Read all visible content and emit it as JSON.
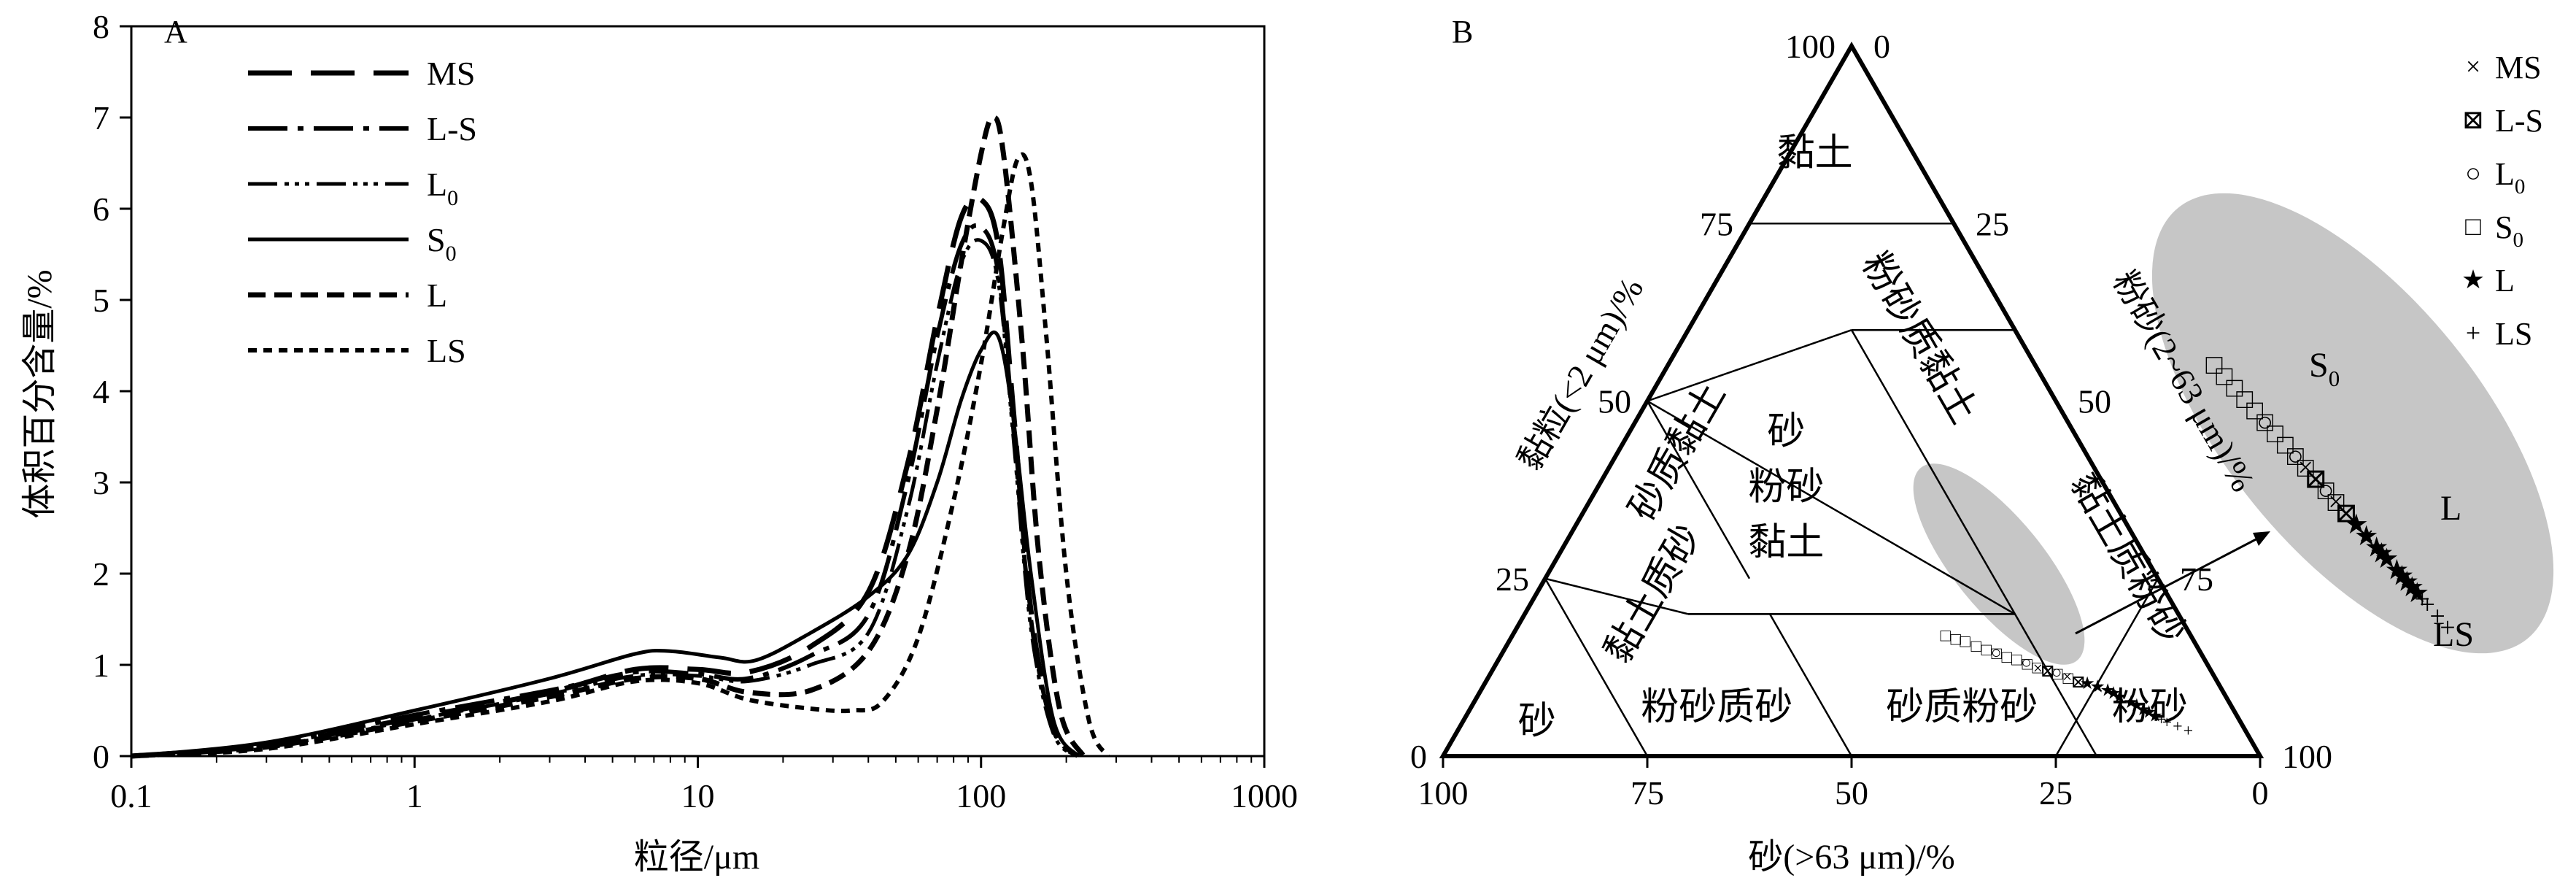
{
  "chart_data": [
    {
      "type": "line",
      "panel_label": "A",
      "xlabel": "粒径/μm",
      "ylabel": "体积百分含量/%",
      "x_scale": "log",
      "xlim": [
        0.1,
        1000
      ],
      "ylim": [
        0,
        8
      ],
      "x_ticks": [
        "0.1",
        "1",
        "10",
        "100",
        "1000"
      ],
      "y_ticks": [
        "0",
        "1",
        "2",
        "3",
        "4",
        "5",
        "6",
        "7",
        "8"
      ],
      "grid": false,
      "legend_position": "top-left",
      "series": [
        {
          "name": "MS",
          "legend_main": "MS",
          "legend_sub": "",
          "dash": "60,26",
          "width": 7,
          "points": [
            [
              0.1,
              0
            ],
            [
              0.3,
              0.12
            ],
            [
              1,
              0.42
            ],
            [
              3,
              0.7
            ],
            [
              6,
              0.95
            ],
            [
              10,
              0.95
            ],
            [
              15,
              0.92
            ],
            [
              25,
              1.2
            ],
            [
              40,
              1.8
            ],
            [
              55,
              3.2
            ],
            [
              70,
              4.8
            ],
            [
              85,
              5.9
            ],
            [
              100,
              6.1
            ],
            [
              115,
              5.6
            ],
            [
              130,
              3.8
            ],
            [
              150,
              1.6
            ],
            [
              180,
              0.3
            ],
            [
              220,
              0
            ]
          ]
        },
        {
          "name": "L-S",
          "legend_main": "L-S",
          "legend_sub": "",
          "dash": "54,14,8,14",
          "width": 6,
          "points": [
            [
              0.1,
              0
            ],
            [
              0.3,
              0.12
            ],
            [
              1,
              0.45
            ],
            [
              3,
              0.72
            ],
            [
              6,
              0.92
            ],
            [
              10,
              0.9
            ],
            [
              15,
              0.85
            ],
            [
              25,
              1.1
            ],
            [
              40,
              1.55
            ],
            [
              55,
              3.0
            ],
            [
              70,
              4.6
            ],
            [
              85,
              5.6
            ],
            [
              100,
              5.8
            ],
            [
              115,
              5.3
            ],
            [
              130,
              3.6
            ],
            [
              150,
              1.5
            ],
            [
              180,
              0.3
            ],
            [
              220,
              0
            ]
          ]
        },
        {
          "name": "L0",
          "legend_main": "L",
          "legend_sub": "0",
          "dash": "40,10,6,8,6,8,6,10",
          "width": 5,
          "points": [
            [
              0.1,
              0
            ],
            [
              0.3,
              0.1
            ],
            [
              1,
              0.4
            ],
            [
              3,
              0.68
            ],
            [
              6,
              0.88
            ],
            [
              10,
              0.88
            ],
            [
              15,
              0.82
            ],
            [
              25,
              1.0
            ],
            [
              40,
              1.35
            ],
            [
              55,
              2.7
            ],
            [
              70,
              4.3
            ],
            [
              85,
              5.4
            ],
            [
              100,
              5.65
            ],
            [
              115,
              5.2
            ],
            [
              130,
              3.5
            ],
            [
              150,
              1.4
            ],
            [
              180,
              0.25
            ],
            [
              220,
              0
            ]
          ]
        },
        {
          "name": "S0",
          "legend_main": "S",
          "legend_sub": "0",
          "dash": "none",
          "width": 5,
          "points": [
            [
              0.1,
              0
            ],
            [
              0.3,
              0.15
            ],
            [
              1,
              0.5
            ],
            [
              3,
              0.85
            ],
            [
              6,
              1.12
            ],
            [
              8,
              1.15
            ],
            [
              12,
              1.08
            ],
            [
              16,
              1.05
            ],
            [
              25,
              1.35
            ],
            [
              40,
              1.75
            ],
            [
              55,
              2.2
            ],
            [
              70,
              3.0
            ],
            [
              85,
              3.9
            ],
            [
              100,
              4.45
            ],
            [
              115,
              4.6
            ],
            [
              130,
              3.7
            ],
            [
              150,
              2.0
            ],
            [
              180,
              0.4
            ],
            [
              220,
              0
            ]
          ]
        },
        {
          "name": "L",
          "legend_main": "L",
          "legend_sub": "",
          "dash": "24,12",
          "width": 7,
          "points": [
            [
              0.1,
              0
            ],
            [
              0.3,
              0.1
            ],
            [
              1,
              0.38
            ],
            [
              3,
              0.65
            ],
            [
              6,
              0.85
            ],
            [
              10,
              0.85
            ],
            [
              15,
              0.7
            ],
            [
              25,
              0.72
            ],
            [
              40,
              1.15
            ],
            [
              55,
              2.2
            ],
            [
              70,
              3.8
            ],
            [
              85,
              5.4
            ],
            [
              100,
              6.6
            ],
            [
              110,
              7.0
            ],
            [
              120,
              6.6
            ],
            [
              140,
              4.5
            ],
            [
              160,
              2.2
            ],
            [
              190,
              0.5
            ],
            [
              230,
              0
            ]
          ]
        },
        {
          "name": "LS",
          "legend_main": "LS",
          "legend_sub": "",
          "dash": "12,9",
          "width": 6,
          "points": [
            [
              0.1,
              0
            ],
            [
              0.3,
              0.08
            ],
            [
              1,
              0.35
            ],
            [
              3,
              0.6
            ],
            [
              6,
              0.82
            ],
            [
              10,
              0.8
            ],
            [
              15,
              0.62
            ],
            [
              25,
              0.52
            ],
            [
              35,
              0.5
            ],
            [
              45,
              0.6
            ],
            [
              60,
              1.3
            ],
            [
              80,
              2.8
            ],
            [
              100,
              4.3
            ],
            [
              120,
              5.8
            ],
            [
              135,
              6.55
            ],
            [
              150,
              6.3
            ],
            [
              170,
              4.6
            ],
            [
              200,
              2.0
            ],
            [
              240,
              0.4
            ],
            [
              280,
              0
            ]
          ]
        }
      ]
    },
    {
      "type": "scatter",
      "subtype": "ternary",
      "panel_label": "B",
      "axis_label_bottom": "砂(>63 μm)/%",
      "axis_label_left": "黏粒(<2 μm)/%",
      "axis_label_right": "粉砂(2~63 μm)/%",
      "bottom_ticks": [
        "100",
        "75",
        "50",
        "25",
        "0"
      ],
      "left_ticks": [
        "0",
        "25",
        "50",
        "75",
        "100"
      ],
      "right_ticks": [
        "0",
        "25",
        "50",
        "75",
        "100"
      ],
      "regions": [
        {
          "name": "clay",
          "label_lines": [
            "黏土"
          ],
          "vertical": false
        },
        {
          "name": "silty-clay",
          "label_lines": [
            "粉砂质黏土"
          ],
          "vertical": true
        },
        {
          "name": "sandy-clay",
          "label_lines": [
            "砂质黏土"
          ],
          "vertical": true
        },
        {
          "name": "sand-silt-clay",
          "label_lines": [
            "砂",
            "粉砂",
            "黏土"
          ],
          "vertical": false
        },
        {
          "name": "clayey-sand",
          "label_lines": [
            "黏土质砂"
          ],
          "vertical": true
        },
        {
          "name": "clayey-silt",
          "label_lines": [
            "黏土质粉砂"
          ],
          "vertical": true
        },
        {
          "name": "sand",
          "label_lines": [
            "砂"
          ],
          "vertical": false
        },
        {
          "name": "silty-sand",
          "label_lines": [
            "粉砂质砂"
          ],
          "vertical": false
        },
        {
          "name": "sandy-silt",
          "label_lines": [
            "砂质粉砂"
          ],
          "vertical": false
        },
        {
          "name": "silt",
          "label_lines": [
            "粉砂"
          ],
          "vertical": false
        }
      ],
      "series": [
        {
          "name": "MS",
          "legend_main": "MS",
          "legend_sub": "",
          "marker": "×"
        },
        {
          "name": "L-S",
          "legend_main": "L-S",
          "legend_sub": "",
          "marker": "⊠"
        },
        {
          "name": "L0",
          "legend_main": "L",
          "legend_sub": "0",
          "marker": "○"
        },
        {
          "name": "S0",
          "legend_main": "S",
          "legend_sub": "0",
          "marker": "□"
        },
        {
          "name": "L",
          "legend_main": "L",
          "legend_sub": "",
          "marker": "★"
        },
        {
          "name": "LS",
          "legend_main": "LS",
          "legend_sub": "",
          "marker": "+"
        }
      ],
      "sample_points": {
        "S0": [
          [
            30,
            17,
            53
          ],
          [
            29,
            16.5,
            54.5
          ],
          [
            28,
            16.2,
            55.8
          ],
          [
            27,
            15.5,
            57.5
          ],
          [
            26,
            15,
            59
          ],
          [
            25,
            14.5,
            60.5
          ],
          [
            24,
            14,
            62
          ],
          [
            23,
            13.6,
            63.4
          ],
          [
            22,
            13,
            65
          ],
          [
            21,
            12.5,
            66.5
          ],
          [
            20,
            12,
            68
          ],
          [
            19,
            11.6,
            69.4
          ],
          [
            18,
            11,
            71
          ]
        ],
        "L0": [
          [
            25,
            14.6,
            60.4
          ],
          [
            22,
            13.2,
            64.8
          ],
          [
            19,
            11.8,
            69.2
          ]
        ],
        "MS": [
          [
            21,
            12.4,
            66.6
          ],
          [
            18,
            11.2,
            70.8
          ],
          [
            15,
            9.6,
            75.4
          ]
        ],
        "L-S": [
          [
            20,
            12,
            68
          ],
          [
            17,
            10.5,
            72.5
          ]
        ],
        "L": [
          [
            16,
            10.3,
            73.7
          ],
          [
            15,
            9.8,
            75.2
          ],
          [
            14,
            9.3,
            76.7
          ],
          [
            13.5,
            8.9,
            77.6
          ],
          [
            13,
            8.4,
            78.6
          ],
          [
            12,
            7.6,
            80.4
          ],
          [
            11.5,
            7.2,
            81.3
          ],
          [
            11,
            6.6,
            82.4
          ],
          [
            10.5,
            6.2,
            83.3
          ],
          [
            10,
            5.7,
            84.3
          ]
        ],
        "LS": [
          [
            9.5,
            5.2,
            85.3
          ],
          [
            9,
            4.8,
            86.2
          ],
          [
            8,
            4.2,
            87.8
          ],
          [
            7,
            3.6,
            89.4
          ]
        ]
      },
      "inset_labels": {
        "S0": [
          "S",
          "0"
        ],
        "L": [
          "L",
          ""
        ],
        "LS": [
          "LS",
          ""
        ]
      },
      "highlight_color": "#c6c6c6"
    }
  ]
}
